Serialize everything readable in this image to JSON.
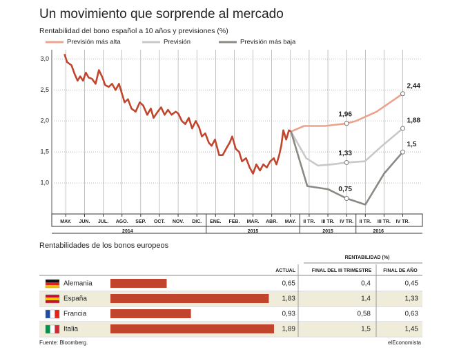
{
  "chart_data": [
    {
      "type": "line",
      "title": "Un movimiento que sorprende al mercado",
      "subtitle": "Rentabilidad del bono español a 10 años y previsiones (%)",
      "xlim": [
        -0.75,
        19.05
      ],
      "xticks": [
        {
          "value": 0,
          "label": "MAY."
        },
        {
          "value": 1,
          "label": "JUN."
        },
        {
          "value": 2,
          "label": "JUL."
        },
        {
          "value": 3,
          "label": "AGO."
        },
        {
          "value": 4,
          "label": "SEP."
        },
        {
          "value": 5,
          "label": "OCT."
        },
        {
          "value": 6,
          "label": "NOV."
        },
        {
          "value": 7,
          "label": "DIC."
        },
        {
          "value": 8,
          "label": "ENE."
        },
        {
          "value": 9,
          "label": "FEB."
        },
        {
          "value": 10,
          "label": "MAR."
        },
        {
          "value": 11,
          "label": "ABR."
        },
        {
          "value": 12,
          "label": "MAY."
        },
        {
          "value": 13,
          "label": "II TR."
        },
        {
          "value": 14,
          "label": "III TR."
        },
        {
          "value": 15,
          "label": "IV TR."
        },
        {
          "value": 16,
          "label": "II TR."
        },
        {
          "value": 17,
          "label": "III TR."
        },
        {
          "value": 18,
          "label": "IV TR."
        }
      ],
      "x_group_labels": [
        "2014",
        "2015",
        "2015",
        "2016"
      ],
      "ylim": [
        0.5,
        3.15
      ],
      "yticks": [
        {
          "value": 1,
          "label": "1,0"
        },
        {
          "value": 1.5,
          "label": "1,5"
        },
        {
          "value": 2,
          "label": "2,0"
        },
        {
          "value": 2.5,
          "label": "2,5"
        },
        {
          "value": 3,
          "label": "3,0"
        }
      ],
      "grid": true,
      "series": [
        {
          "color": "#c0452c",
          "x": [
            -0.07,
            0.07,
            0.3,
            0.48,
            0.63,
            0.77,
            0.92,
            1.07,
            1.22,
            1.4,
            1.59,
            1.77,
            1.96,
            2.1,
            2.29,
            2.47,
            2.66,
            2.84,
            2.99,
            3.14,
            3.32,
            3.51,
            3.73,
            3.95,
            4.13,
            4.35,
            4.54,
            4.69,
            4.91,
            5.09,
            5.28,
            5.46,
            5.65,
            5.87,
            6.01,
            6.2,
            6.38,
            6.57,
            6.75,
            6.94,
            7.12,
            7.27,
            7.45,
            7.64,
            7.79,
            7.97,
            8.19,
            8.38,
            8.56,
            8.75,
            8.89,
            9.08,
            9.26,
            9.41,
            9.63,
            9.82,
            10.0,
            10.18,
            10.37,
            10.55,
            10.74,
            10.92,
            11.11,
            11.25,
            11.4,
            11.51,
            11.62,
            11.77,
            11.92,
            12.03
          ],
          "values": [
            3.08,
            2.95,
            2.9,
            2.75,
            2.65,
            2.72,
            2.65,
            2.78,
            2.7,
            2.68,
            2.6,
            2.82,
            2.7,
            2.58,
            2.55,
            2.6,
            2.5,
            2.6,
            2.45,
            2.3,
            2.35,
            2.2,
            2.15,
            2.3,
            2.25,
            2.1,
            2.2,
            2.05,
            2.15,
            2.22,
            2.1,
            2.18,
            2.1,
            2.15,
            2.12,
            2.0,
            1.95,
            2.05,
            1.88,
            2.0,
            1.9,
            1.75,
            1.8,
            1.65,
            1.6,
            1.7,
            1.45,
            1.45,
            1.55,
            1.65,
            1.75,
            1.55,
            1.5,
            1.35,
            1.4,
            1.25,
            1.15,
            1.3,
            1.2,
            1.3,
            1.25,
            1.35,
            1.4,
            1.3,
            1.45,
            1.6,
            1.85,
            1.7,
            1.85,
            1.83
          ]
        },
        {
          "name": "Previsión más alta",
          "color": "#eba38d",
          "x": [
            12.03,
            12.73,
            13.84,
            15,
            15.5,
            16.6,
            18
          ],
          "values": [
            1.83,
            1.92,
            1.92,
            1.96,
            2.0,
            2.15,
            2.44
          ],
          "value_labels": [
            null,
            null,
            null,
            "1,96",
            null,
            null,
            "2,44"
          ]
        },
        {
          "name": "Previsión",
          "color": "#c8c8c8",
          "x": [
            12.03,
            12.84,
            13.47,
            14.21,
            15,
            15.98,
            16.9,
            18
          ],
          "values": [
            1.83,
            1.4,
            1.28,
            1.3,
            1.33,
            1.35,
            1.6,
            1.88
          ],
          "value_labels": [
            null,
            null,
            null,
            null,
            "1,33",
            null,
            null,
            "1,88"
          ]
        },
        {
          "name": "Previsión más baja",
          "color": "#8c8884",
          "x": [
            12.03,
            12.9,
            14,
            15,
            16,
            17,
            18
          ],
          "values": [
            1.83,
            0.95,
            0.9,
            0.75,
            0.65,
            1.15,
            1.5
          ],
          "value_labels": [
            null,
            null,
            null,
            "0,75",
            null,
            null,
            "1,5"
          ]
        }
      ]
    },
    {
      "type": "bar",
      "title": "Rentabilidades de los bonos europeos",
      "group_header": "RENTABILIDAD (%)",
      "categories": [
        "Alemania",
        "España",
        "Francia",
        "Italia"
      ],
      "series": [
        {
          "name": "ACTUAL",
          "color": "#c0452c",
          "values": [
            0.65,
            1.83,
            0.93,
            1.89
          ],
          "value_labels": [
            "0,65",
            "1,83",
            "0,93",
            "1,89"
          ]
        },
        {
          "name": "FINAL DEL III TRIMESTRE",
          "values": [
            0.4,
            1.4,
            0.58,
            1.5
          ],
          "value_labels": [
            "0,4",
            "1,4",
            "0,58",
            "1,5"
          ]
        },
        {
          "name": "FINAL DE AÑO",
          "values": [
            0.45,
            1.33,
            0.63,
            1.45
          ],
          "value_labels": [
            "0,45",
            "1,33",
            "0,63",
            "1,45"
          ]
        }
      ]
    }
  ],
  "source": "Fuente: Bloomberg.",
  "brand": "elEconomista"
}
